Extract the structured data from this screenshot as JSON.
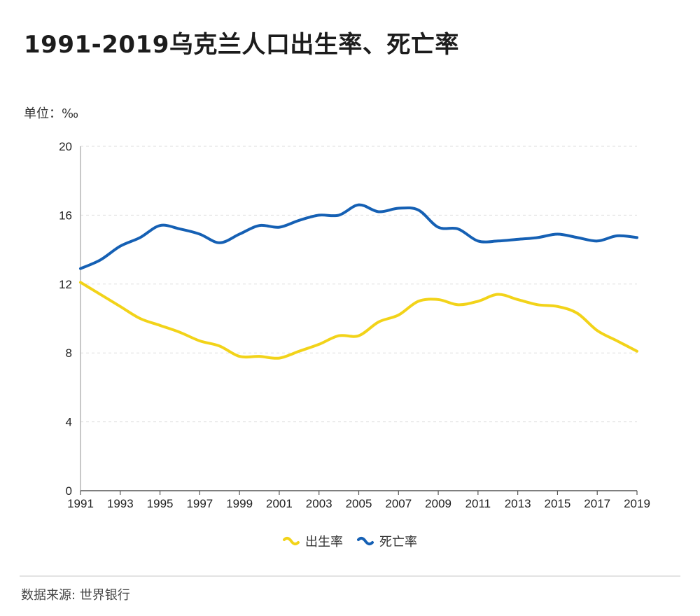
{
  "title": "1991-2019乌克兰人口出生率、死亡率",
  "unit_label": "单位：‰",
  "source": "数据来源: 世界银行",
  "legend": [
    {
      "label": "出生率",
      "color": "#f2d319"
    },
    {
      "label": "死亡率",
      "color": "#1560b4"
    }
  ],
  "chart_data": {
    "type": "line",
    "title": "1991-2019乌克兰人口出生率、死亡率",
    "xlabel": "",
    "ylabel": "单位：‰",
    "xlim": [
      1991,
      2019
    ],
    "ylim": [
      0,
      20
    ],
    "x_ticks": [
      "1991",
      "1993",
      "1995",
      "1997",
      "1999",
      "2001",
      "2003",
      "2005",
      "2007",
      "2009",
      "2011",
      "2013",
      "2015",
      "2017",
      "2019"
    ],
    "y_ticks": [
      "0",
      "4",
      "8",
      "12",
      "16",
      "20"
    ],
    "grid": "horizontal dashed",
    "legend_position": "bottom-center",
    "x": [
      1991,
      1992,
      1993,
      1994,
      1995,
      1996,
      1997,
      1998,
      1999,
      2000,
      2001,
      2002,
      2003,
      2004,
      2005,
      2006,
      2007,
      2008,
      2009,
      2010,
      2011,
      2012,
      2013,
      2014,
      2015,
      2016,
      2017,
      2018,
      2019
    ],
    "series": [
      {
        "name": "出生率",
        "color": "#f2d319",
        "values": [
          12.1,
          11.4,
          10.7,
          10.0,
          9.6,
          9.2,
          8.7,
          8.4,
          7.8,
          7.8,
          7.7,
          8.1,
          8.5,
          9.0,
          9.0,
          9.8,
          10.2,
          11.0,
          11.1,
          10.8,
          11.0,
          11.4,
          11.1,
          10.8,
          10.7,
          10.3,
          9.3,
          8.7,
          8.1
        ]
      },
      {
        "name": "死亡率",
        "color": "#1560b4",
        "values": [
          12.9,
          13.4,
          14.2,
          14.7,
          15.4,
          15.2,
          14.9,
          14.4,
          14.9,
          15.4,
          15.3,
          15.7,
          16.0,
          16.0,
          16.6,
          16.2,
          16.4,
          16.3,
          15.3,
          15.2,
          14.5,
          14.5,
          14.6,
          14.7,
          14.9,
          14.7,
          14.5,
          14.8,
          14.7
        ]
      }
    ]
  }
}
